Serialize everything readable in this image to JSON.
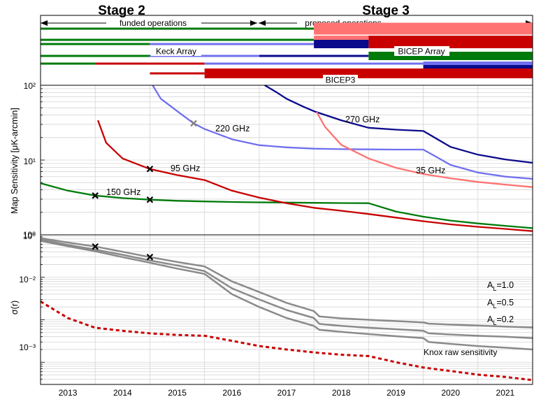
{
  "header": {
    "stage2": "Stage 2",
    "stage3": "Stage 3",
    "funded": "funded operations",
    "proposed": "proposed operations"
  },
  "colors": {
    "green": "#007a0a",
    "red": "#c80000",
    "pink": "#ff7373",
    "lightblue": "#7070f0",
    "darkblue": "#0a0a8c",
    "gray": "#8a8a8a",
    "grid": "#d4d4d4"
  },
  "chart_data": [
    {
      "type": "timeline",
      "labels": {
        "keck": "Keck Array",
        "bicep_array": "BICEP Array",
        "bicep3": "BICEP3"
      },
      "x_range": [
        2012.5,
        2021.5
      ],
      "rows": [
        {
          "segments": [
            {
              "from": 2012.5,
              "to": 2017.5,
              "color": "green"
            },
            {
              "from": 2017.5,
              "to": 2021.5,
              "color": "pink"
            }
          ]
        },
        {
          "segments": [
            {
              "from": 2012.5,
              "to": 2017.5,
              "color": "green"
            },
            {
              "from": 2017.5,
              "to": 2018.5,
              "color": "pink"
            },
            {
              "from": 2018.5,
              "to": 2021.5,
              "color": "red"
            }
          ]
        },
        {
          "segments": [
            {
              "from": 2012.5,
              "to": 2014.5,
              "color": "green"
            },
            {
              "from": 2014.5,
              "to": 2017.5,
              "color": "lightblue"
            },
            {
              "from": 2017.5,
              "to": 2018.5,
              "color": "darkblue"
            },
            {
              "from": 2018.5,
              "to": 2021.5,
              "color": "red"
            }
          ]
        },
        {
          "segments": [
            {
              "from": 2012.5,
              "to": 2014.5,
              "color": "green"
            },
            {
              "from": 2014.5,
              "to": 2016.5,
              "color": "lightblue"
            },
            {
              "from": 2016.5,
              "to": 2018.5,
              "color": "darkblue"
            },
            {
              "from": 2018.5,
              "to": 2021.5,
              "color": "green"
            }
          ]
        },
        {
          "segments": [
            {
              "from": 2012.5,
              "to": 2013.5,
              "color": "green"
            },
            {
              "from": 2013.5,
              "to": 2015.5,
              "color": "red"
            },
            {
              "from": 2015.5,
              "to": 2019.5,
              "color": "lightblue"
            },
            {
              "from": 2019.5,
              "to": 2021.5,
              "color": "lightblue"
            }
          ]
        },
        {
          "segments": [
            {
              "from": 2019.5,
              "to": 2021.5,
              "color": "darkblue"
            }
          ]
        },
        {
          "segments": [
            {
              "from": 2014.5,
              "to": 2015.5,
              "color": "red"
            },
            {
              "from": 2015.5,
              "to": 2021.5,
              "color": "red"
            }
          ]
        }
      ]
    },
    {
      "type": "line",
      "ylabel": "Map Sensitivity [μK-arcmin]",
      "yscale": "log",
      "ylim": [
        1,
        100
      ],
      "y_ticks": [
        "10⁰",
        "10¹",
        "10²"
      ],
      "grid": true,
      "series": [
        {
          "name": "150 GHz",
          "color": "green",
          "x": [
            2012.5,
            2013.0,
            2013.5,
            2014.0,
            2014.5,
            2015.0,
            2015.5,
            2016.0,
            2016.5,
            2017.0,
            2017.5,
            2018.0,
            2018.5,
            2019.0,
            2019.5,
            2020.0,
            2020.5,
            2021.0,
            2021.5
          ],
          "y": [
            4.9,
            3.9,
            3.35,
            3.1,
            2.95,
            2.85,
            2.8,
            2.75,
            2.72,
            2.7,
            2.68,
            2.66,
            2.65,
            2.05,
            1.75,
            1.55,
            1.42,
            1.32,
            1.23
          ],
          "markers_x": [
            2013.5,
            2014.5
          ]
        },
        {
          "name": "95 GHz",
          "color": "red",
          "x": [
            2013.55,
            2013.7,
            2014.0,
            2014.5,
            2015.0,
            2015.5,
            2016.0,
            2016.5,
            2017.0,
            2017.5,
            2018.0,
            2018.5,
            2019.0,
            2019.5,
            2020.0,
            2020.5,
            2021.0,
            2021.5
          ],
          "y": [
            34,
            17,
            10.5,
            7.6,
            6.3,
            5.4,
            3.9,
            3.15,
            2.65,
            2.3,
            2.1,
            1.9,
            1.7,
            1.52,
            1.38,
            1.28,
            1.2,
            1.12
          ],
          "markers_x": [
            2014.5
          ]
        },
        {
          "name": "220 GHz",
          "color": "lightblue",
          "x": [
            2014.55,
            2014.7,
            2015.0,
            2015.3,
            2015.5,
            2016.0,
            2016.5,
            2017.0,
            2017.5,
            2018.0,
            2018.5,
            2019.0,
            2019.5,
            2020.0,
            2020.5,
            2021.0,
            2021.5
          ],
          "y": [
            100,
            66,
            45,
            31,
            26,
            19,
            15.8,
            14.8,
            14.2,
            14.0,
            13.9,
            13.8,
            13.8,
            8.6,
            6.8,
            6.0,
            5.6
          ],
          "markers_x": [
            2015.3
          ]
        },
        {
          "name": "270 GHz",
          "color": "darkblue",
          "x": [
            2016.6,
            2016.8,
            2017.0,
            2017.3,
            2017.5,
            2018.0,
            2018.5,
            2019.0,
            2019.5,
            2020.0,
            2020.5,
            2021.0,
            2021.5
          ],
          "y": [
            100,
            82,
            66,
            52,
            45,
            34,
            27,
            25.5,
            24.5,
            15,
            11.8,
            10.2,
            9.2
          ],
          "markers_x": []
        },
        {
          "name": "35 GHz",
          "color": "pink",
          "x": [
            2017.55,
            2017.7,
            2018.0,
            2018.5,
            2019.0,
            2019.5,
            2020.0,
            2020.5,
            2021.0,
            2021.5
          ],
          "y": [
            44,
            28,
            16,
            10.5,
            7.9,
            6.5,
            5.7,
            5.1,
            4.7,
            4.35
          ],
          "markers_x": []
        }
      ]
    },
    {
      "type": "line",
      "ylabel": "σ(r)",
      "yscale": "log",
      "ylim": [
        0.0003,
        1
      ],
      "y_ticks": [
        "10⁻³",
        "10⁻²",
        "10⁰"
      ],
      "xlim": [
        2012.5,
        2021.5
      ],
      "x_tick_labels": [
        "2013",
        "2014",
        "2015",
        "2016",
        "2017",
        "2018",
        "2019",
        "2020",
        "2021"
      ],
      "grid": true,
      "series": [
        {
          "name": "A_L=1.0",
          "label_main": "A",
          "label_sub": "L",
          "label_tail": "=1.0",
          "color": "gray",
          "x": [
            2012.5,
            2013.0,
            2013.5,
            2014.0,
            2014.5,
            2015.0,
            2015.5,
            2016.0,
            2016.5,
            2017.0,
            2017.5,
            2017.6,
            2018.0,
            2018.5,
            2019.0,
            2019.5,
            2019.6,
            2020.0,
            2020.5,
            2021.0,
            2021.5
          ],
          "y": [
            0.84,
            0.66,
            0.53,
            0.4,
            0.3,
            0.23,
            0.18,
            0.08,
            0.045,
            0.025,
            0.016,
            0.012,
            0.0108,
            0.01,
            0.0093,
            0.0087,
            0.0081,
            0.0077,
            0.0073,
            0.0069,
            0.0066
          ]
        },
        {
          "name": "A_L=0.5",
          "label_main": "A",
          "label_sub": "L",
          "label_tail": "=0.5",
          "color": "gray",
          "x": [
            2012.5,
            2013.0,
            2013.5,
            2014.0,
            2014.5,
            2015.0,
            2015.5,
            2016.0,
            2016.5,
            2017.0,
            2017.5,
            2017.6,
            2018.0,
            2018.5,
            2019.0,
            2019.5,
            2019.6,
            2020.0,
            2020.5,
            2021.0,
            2021.5
          ],
          "y": [
            0.78,
            0.58,
            0.45,
            0.34,
            0.25,
            0.19,
            0.14,
            0.055,
            0.03,
            0.017,
            0.011,
            0.008,
            0.0072,
            0.0065,
            0.006,
            0.0055,
            0.0048,
            0.0045,
            0.0042,
            0.004,
            0.0037
          ]
        },
        {
          "name": "A_L=0.2",
          "label_main": "A",
          "label_sub": "L",
          "label_tail": "=0.2",
          "color": "gray",
          "x": [
            2012.5,
            2013.0,
            2013.5,
            2014.0,
            2014.5,
            2015.0,
            2015.5,
            2016.0,
            2016.5,
            2017.0,
            2017.5,
            2017.6,
            2018.0,
            2018.5,
            2019.0,
            2019.5,
            2019.6,
            2020.0,
            2020.5,
            2021.0,
            2021.5
          ],
          "y": [
            0.72,
            0.54,
            0.41,
            0.3,
            0.22,
            0.16,
            0.12,
            0.04,
            0.02,
            0.011,
            0.0072,
            0.0058,
            0.0052,
            0.0046,
            0.0041,
            0.0037,
            0.003,
            0.0027,
            0.0024,
            0.0022,
            0.002
          ]
        },
        {
          "name": "Knox raw sensitivity",
          "color": "red",
          "dashed": true,
          "x": [
            2012.5,
            2013.0,
            2013.5,
            2014.0,
            2014.5,
            2015.0,
            2015.5,
            2016.0,
            2016.5,
            2017.0,
            2017.5,
            2018.0,
            2018.5,
            2019.0,
            2019.5,
            2020.0,
            2020.5,
            2021.0,
            2021.5
          ],
          "y": [
            0.027,
            0.011,
            0.0065,
            0.0055,
            0.0048,
            0.0044,
            0.0042,
            0.0032,
            0.0024,
            0.002,
            0.0017,
            0.0015,
            0.0014,
            0.001,
            0.00075,
            0.00062,
            0.00051,
            0.00045,
            0.00038
          ]
        }
      ],
      "markers": [
        {
          "x": 2013.5,
          "y": 0.53
        },
        {
          "x": 2014.5,
          "y": 0.3
        }
      ]
    }
  ]
}
